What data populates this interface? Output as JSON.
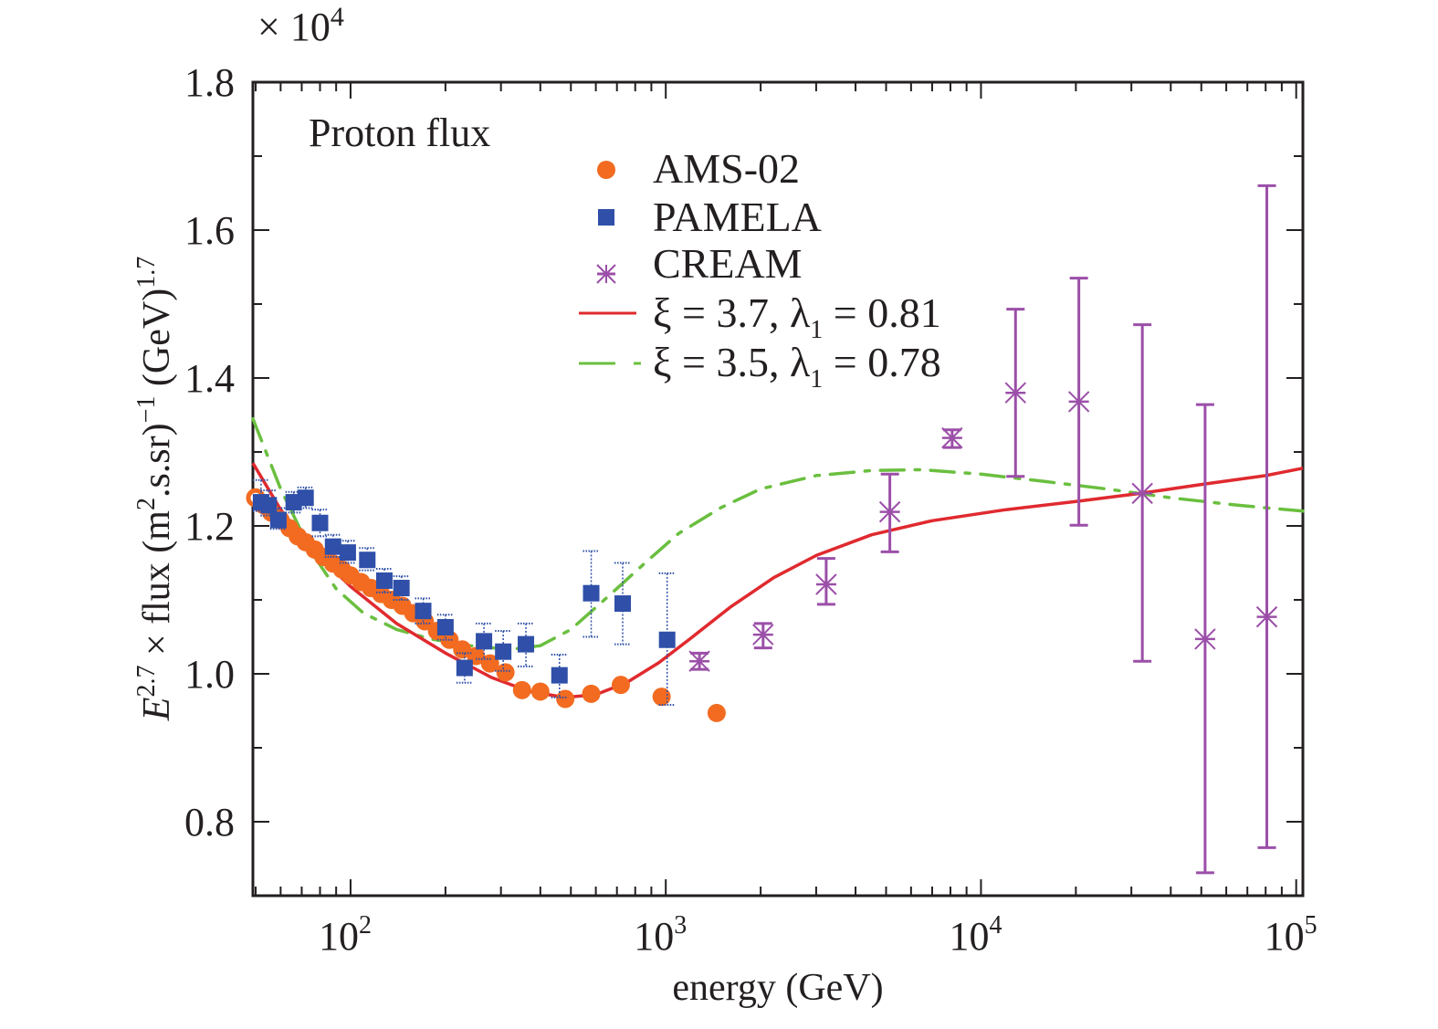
{
  "chart_data": {
    "type": "scatter",
    "title": "",
    "annotation": "Proton flux",
    "multiplier_label": "× 10",
    "multiplier_exponent": "4",
    "xlabel": "energy (GeV)",
    "ylabel": {
      "prefix": "E",
      "prefix_sup": "2.7",
      "middle": " × flux (m",
      "m_sup": "2",
      "rest": ".s.sr)",
      "rest_sup": "−1",
      "tail": " (GeV)",
      "tail_sup": "1.7"
    },
    "xscale": "log",
    "xlim": [
      49,
      105000
    ],
    "ylim": [
      0.7,
      1.8
    ],
    "y_multiplier": 10000,
    "x_ticks": [
      {
        "value": 100,
        "base": "10",
        "exp": "2"
      },
      {
        "value": 1000,
        "base": "10",
        "exp": "3"
      },
      {
        "value": 10000,
        "base": "10",
        "exp": "4"
      },
      {
        "value": 100000,
        "base": "10",
        "exp": "5"
      }
    ],
    "y_ticks": [
      {
        "value": 0.8,
        "label": "0.8"
      },
      {
        "value": 1.0,
        "label": "1.0"
      },
      {
        "value": 1.2,
        "label": "1.2"
      },
      {
        "value": 1.4,
        "label": "1.4"
      },
      {
        "value": 1.6,
        "label": "1.6"
      },
      {
        "value": 1.8,
        "label": "1.8"
      }
    ],
    "y_minor_ticks": [
      0.9,
      1.1,
      1.3,
      1.5,
      1.7
    ],
    "grid": false,
    "legend_position": "top-center",
    "series": [
      {
        "name": "AMS-02",
        "kind": "points",
        "marker": "circle",
        "color": "#f26b21",
        "points": [
          {
            "x": 50,
            "y": 1.238
          },
          {
            "x": 53,
            "y": 1.228
          },
          {
            "x": 56,
            "y": 1.218
          },
          {
            "x": 60,
            "y": 1.208
          },
          {
            "x": 64,
            "y": 1.197
          },
          {
            "x": 68,
            "y": 1.186
          },
          {
            "x": 72,
            "y": 1.178
          },
          {
            "x": 77,
            "y": 1.168
          },
          {
            "x": 82,
            "y": 1.158
          },
          {
            "x": 88,
            "y": 1.149
          },
          {
            "x": 94,
            "y": 1.141
          },
          {
            "x": 100,
            "y": 1.133
          },
          {
            "x": 108,
            "y": 1.124
          },
          {
            "x": 116,
            "y": 1.116
          },
          {
            "x": 125,
            "y": 1.108
          },
          {
            "x": 135,
            "y": 1.1
          },
          {
            "x": 146,
            "y": 1.092
          },
          {
            "x": 158,
            "y": 1.082
          },
          {
            "x": 172,
            "y": 1.071
          },
          {
            "x": 188,
            "y": 1.058
          },
          {
            "x": 206,
            "y": 1.046
          },
          {
            "x": 226,
            "y": 1.033
          },
          {
            "x": 250,
            "y": 1.024
          },
          {
            "x": 277,
            "y": 1.014
          },
          {
            "x": 310,
            "y": 1.002
          },
          {
            "x": 350,
            "y": 0.978
          },
          {
            "x": 400,
            "y": 0.976
          },
          {
            "x": 480,
            "y": 0.966
          },
          {
            "x": 580,
            "y": 0.973
          },
          {
            "x": 720,
            "y": 0.985
          },
          {
            "x": 970,
            "y": 0.969
          },
          {
            "x": 1450,
            "y": 0.947
          }
        ]
      },
      {
        "name": "PAMELA",
        "kind": "points",
        "marker": "square",
        "color": "#2f4fa8",
        "points": [
          {
            "x": 52,
            "y": 1.232,
            "ylo": 1.22,
            "yhi": 1.262
          },
          {
            "x": 55,
            "y": 1.228,
            "ylo": 1.214,
            "yhi": 1.248
          },
          {
            "x": 59,
            "y": 1.208,
            "ylo": 1.196,
            "yhi": 1.224
          },
          {
            "x": 66,
            "y": 1.232,
            "ylo": 1.218,
            "yhi": 1.246
          },
          {
            "x": 72,
            "y": 1.238,
            "ylo": 1.224,
            "yhi": 1.252
          },
          {
            "x": 80,
            "y": 1.204,
            "ylo": 1.186,
            "yhi": 1.222
          },
          {
            "x": 88,
            "y": 1.172,
            "ylo": 1.158,
            "yhi": 1.188
          },
          {
            "x": 98,
            "y": 1.164,
            "ylo": 1.15,
            "yhi": 1.18
          },
          {
            "x": 113,
            "y": 1.154,
            "ylo": 1.14,
            "yhi": 1.17
          },
          {
            "x": 128,
            "y": 1.126,
            "ylo": 1.11,
            "yhi": 1.142
          },
          {
            "x": 145,
            "y": 1.116,
            "ylo": 1.1,
            "yhi": 1.132
          },
          {
            "x": 170,
            "y": 1.085,
            "ylo": 1.068,
            "yhi": 1.102
          },
          {
            "x": 200,
            "y": 1.063,
            "ylo": 1.046,
            "yhi": 1.08
          },
          {
            "x": 230,
            "y": 1.008,
            "ylo": 0.988,
            "yhi": 1.028
          },
          {
            "x": 265,
            "y": 1.044,
            "ylo": 1.02,
            "yhi": 1.068
          },
          {
            "x": 305,
            "y": 1.03,
            "ylo": 1.004,
            "yhi": 1.058
          },
          {
            "x": 360,
            "y": 1.04,
            "ylo": 1.01,
            "yhi": 1.068
          },
          {
            "x": 460,
            "y": 0.998,
            "ylo": 0.968,
            "yhi": 1.026
          },
          {
            "x": 580,
            "y": 1.109,
            "ylo": 1.05,
            "yhi": 1.166
          },
          {
            "x": 730,
            "y": 1.095,
            "ylo": 1.04,
            "yhi": 1.15
          },
          {
            "x": 1010,
            "y": 1.046,
            "ylo": 0.958,
            "yhi": 1.136
          }
        ]
      },
      {
        "name": "CREAM",
        "kind": "points",
        "marker": "asterisk",
        "color": "#9b4fa8",
        "points": [
          {
            "x": 1279,
            "y": 1.017,
            "ylo": 1.006,
            "yhi": 1.028
          },
          {
            "x": 2036,
            "y": 1.053,
            "ylo": 1.035,
            "yhi": 1.068
          },
          {
            "x": 3228,
            "y": 1.121,
            "ylo": 1.094,
            "yhi": 1.156
          },
          {
            "x": 5139,
            "y": 1.219,
            "ylo": 1.165,
            "yhi": 1.27
          },
          {
            "x": 8100,
            "y": 1.319,
            "ylo": 1.306,
            "yhi": 1.33
          },
          {
            "x": 12870,
            "y": 1.38,
            "ylo": 1.267,
            "yhi": 1.493
          },
          {
            "x": 20440,
            "y": 1.368,
            "ylo": 1.201,
            "yhi": 1.535
          },
          {
            "x": 32500,
            "y": 1.244,
            "ylo": 1.017,
            "yhi": 1.472
          },
          {
            "x": 51400,
            "y": 1.047,
            "ylo": 0.731,
            "yhi": 1.364
          },
          {
            "x": 80700,
            "y": 1.077,
            "ylo": 0.765,
            "yhi": 1.66
          }
        ]
      },
      {
        "name": "ξ = 3.7, λ₁ = 0.81",
        "legend": {
          "pre": "ξ = 3.7, λ",
          "sub": "1",
          "post": " = 0.81"
        },
        "kind": "line",
        "style": "solid",
        "color": "#e02a2f",
        "points": [
          {
            "x": 49,
            "y": 1.285
          },
          {
            "x": 60,
            "y": 1.222
          },
          {
            "x": 75,
            "y": 1.17
          },
          {
            "x": 100,
            "y": 1.118
          },
          {
            "x": 140,
            "y": 1.068
          },
          {
            "x": 200,
            "y": 1.028
          },
          {
            "x": 280,
            "y": 0.995
          },
          {
            "x": 370,
            "y": 0.976
          },
          {
            "x": 480,
            "y": 0.968
          },
          {
            "x": 600,
            "y": 0.972
          },
          {
            "x": 750,
            "y": 0.988
          },
          {
            "x": 950,
            "y": 1.015
          },
          {
            "x": 1200,
            "y": 1.048
          },
          {
            "x": 1600,
            "y": 1.09
          },
          {
            "x": 2200,
            "y": 1.13
          },
          {
            "x": 3000,
            "y": 1.16
          },
          {
            "x": 4500,
            "y": 1.188
          },
          {
            "x": 7000,
            "y": 1.207
          },
          {
            "x": 12000,
            "y": 1.222
          },
          {
            "x": 20000,
            "y": 1.233
          },
          {
            "x": 32000,
            "y": 1.244
          },
          {
            "x": 50000,
            "y": 1.256
          },
          {
            "x": 80000,
            "y": 1.268
          },
          {
            "x": 105000,
            "y": 1.278
          }
        ]
      },
      {
        "name": "ξ = 3.5, λ₁ = 0.78",
        "legend": {
          "pre": "ξ = 3.5, λ",
          "sub": "1",
          "post": " = 0.78"
        },
        "kind": "line",
        "style": "dash-dot",
        "color": "#6abf3f",
        "points": [
          {
            "x": 49,
            "y": 1.345
          },
          {
            "x": 60,
            "y": 1.25
          },
          {
            "x": 75,
            "y": 1.165
          },
          {
            "x": 90,
            "y": 1.115
          },
          {
            "x": 110,
            "y": 1.082
          },
          {
            "x": 140,
            "y": 1.06
          },
          {
            "x": 180,
            "y": 1.047
          },
          {
            "x": 240,
            "y": 1.038
          },
          {
            "x": 320,
            "y": 1.033
          },
          {
            "x": 400,
            "y": 1.038
          },
          {
            "x": 500,
            "y": 1.06
          },
          {
            "x": 650,
            "y": 1.103
          },
          {
            "x": 850,
            "y": 1.148
          },
          {
            "x": 1100,
            "y": 1.19
          },
          {
            "x": 1500,
            "y": 1.225
          },
          {
            "x": 2000,
            "y": 1.25
          },
          {
            "x": 3000,
            "y": 1.268
          },
          {
            "x": 4500,
            "y": 1.275
          },
          {
            "x": 6500,
            "y": 1.276
          },
          {
            "x": 10000,
            "y": 1.27
          },
          {
            "x": 16000,
            "y": 1.26
          },
          {
            "x": 25000,
            "y": 1.25
          },
          {
            "x": 40000,
            "y": 1.238
          },
          {
            "x": 65000,
            "y": 1.228
          },
          {
            "x": 105000,
            "y": 1.22
          }
        ]
      }
    ]
  }
}
